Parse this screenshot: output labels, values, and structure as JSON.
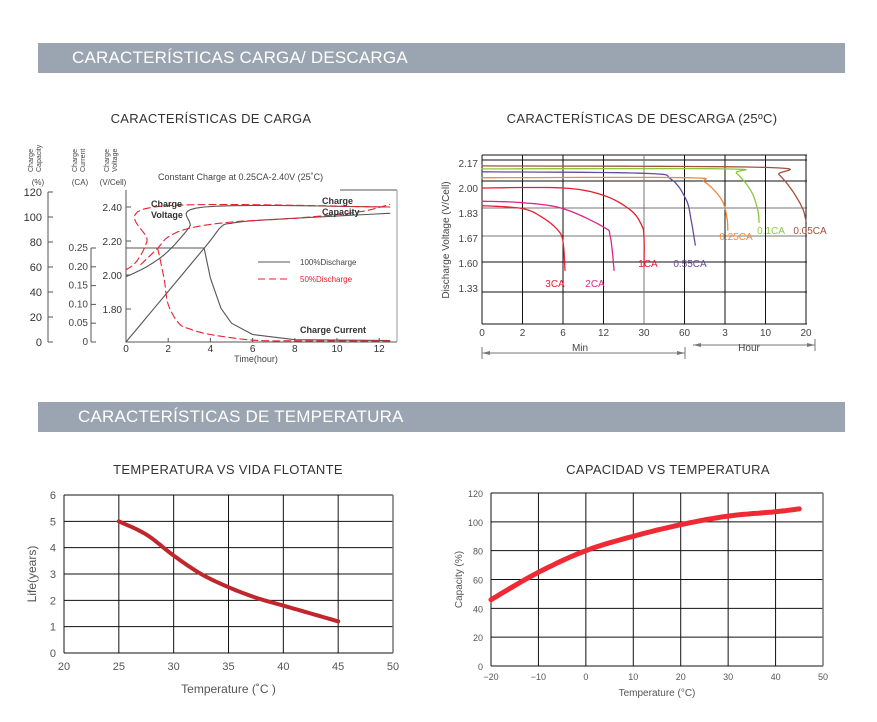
{
  "sections": {
    "charge_discharge": "CARACTERÍSTICAS CARGA/ DESCARGA",
    "temperature": "CARACTERÍSTICAS DE TEMPERATURA"
  },
  "chart_data": [
    {
      "type": "line",
      "title": "CARACTERÍSTICAS DE CARGA",
      "subtitle": "Constant Charge at 0.25CA-2.40V  (25˚C)",
      "axis_headers": {
        "capacity": [
          "Charge",
          "Capacity",
          "(%)"
        ],
        "current": [
          "Charge",
          "Current",
          "(CA)"
        ],
        "voltage": [
          "Charge",
          "Voltage",
          "(V/Cell)"
        ]
      },
      "xlabel": "Time(hour)",
      "x_ticks": [
        0,
        2,
        4,
        6,
        8,
        10,
        12
      ],
      "capacity_ticks": [
        0,
        20,
        40,
        60,
        80,
        100,
        120
      ],
      "current_ticks": [
        "0",
        "0.05",
        "0.10",
        "0.15",
        "0.20",
        "0.25"
      ],
      "voltage_ticks": [
        "1.80",
        "2.00",
        "2.20",
        "2.40"
      ],
      "annotations": {
        "voltage": [
          "Charge",
          "Voltage"
        ],
        "capacity": [
          "Charge",
          "Capacity"
        ],
        "current": "Charge Current"
      },
      "legend": [
        {
          "label": "100%Discharge",
          "color": "#555555",
          "dash": "solid"
        },
        {
          "label": "50%Discharge",
          "color": "#e8212e",
          "dash": "dashed"
        }
      ],
      "legend_placement": "right-center",
      "series": [
        {
          "group": "100%Discharge",
          "axis": "voltage",
          "points": [
            [
              0,
              1.99
            ],
            [
              1,
              2.05
            ],
            [
              2,
              2.14
            ],
            [
              3,
              2.28
            ],
            [
              3.7,
              2.4
            ],
            [
              12.5,
              2.4
            ]
          ]
        },
        {
          "group": "100%Discharge",
          "axis": "current",
          "points": [
            [
              0,
              0.25
            ],
            [
              3.7,
              0.25
            ],
            [
              4,
              0.17
            ],
            [
              4.5,
              0.09
            ],
            [
              5,
              0.05
            ],
            [
              6,
              0.02
            ],
            [
              8,
              0.006
            ],
            [
              12.5,
              0.004
            ]
          ]
        },
        {
          "group": "100%Discharge",
          "axis": "capacity",
          "points": [
            [
              0,
              0
            ],
            [
              3.7,
              75
            ],
            [
              4.5,
              92
            ],
            [
              5,
              95
            ],
            [
              6,
              97
            ],
            [
              8,
              99
            ],
            [
              12.5,
              103
            ]
          ]
        },
        {
          "group": "50%Discharge",
          "axis": "voltage",
          "points": [
            [
              0,
              2.03
            ],
            [
              0.5,
              2.08
            ],
            [
              1,
              2.2
            ],
            [
              1.3,
              2.4
            ],
            [
              12.5,
              2.4
            ]
          ]
        },
        {
          "group": "50%Discharge",
          "axis": "current",
          "points": [
            [
              1.5,
              0.25
            ],
            [
              1.8,
              0.17
            ],
            [
              2,
              0.1
            ],
            [
              2.5,
              0.05
            ],
            [
              3,
              0.035
            ],
            [
              4,
              0.02
            ],
            [
              6,
              0.005
            ],
            [
              8,
              0.003
            ],
            [
              12.5,
              0.003
            ]
          ]
        },
        {
          "group": "50%Discharge",
          "axis": "capacity",
          "points": [
            [
              0.7,
              62
            ],
            [
              1.5,
              75
            ],
            [
              2,
              84
            ],
            [
              3,
              91
            ],
            [
              5,
              96
            ],
            [
              8,
              99
            ],
            [
              11,
              104
            ],
            [
              12.5,
              110
            ]
          ]
        }
      ]
    },
    {
      "type": "line",
      "title": "CARACTERÍSTICAS DE DESCARGA (25ºC)",
      "ylabel": "Discharge Voltage (V/Cell)",
      "x_ticks_minutes": [
        0,
        2,
        6,
        12,
        30,
        60,
        180,
        600,
        1200
      ],
      "x_tick_labels": [
        "0",
        "2",
        "6",
        "12",
        "30",
        "60",
        "3",
        "10",
        "20"
      ],
      "x_units": {
        "min": "Min",
        "hour": "Hour"
      },
      "y_ticks": [
        2.17,
        2.0,
        1.83,
        1.67,
        1.6,
        1.33
      ],
      "y_tick_labels": [
        "2.17",
        "2.00",
        "1.83",
        "1.67",
        "1.60",
        "1.33"
      ],
      "grid": true,
      "series": [
        {
          "name": "3CA",
          "color": "#e8212e",
          "points": [
            [
              0,
              1.88
            ],
            [
              2,
              1.86
            ],
            [
              4,
              1.8
            ],
            [
              5.5,
              1.72
            ],
            [
              6,
              1.66
            ],
            [
              6.3,
              1.52
            ]
          ]
        },
        {
          "name": "2CA",
          "color": "#e0248a",
          "points": [
            [
              0,
              1.91
            ],
            [
              2,
              1.9
            ],
            [
              6,
              1.86
            ],
            [
              12,
              1.74
            ],
            [
              15,
              1.68
            ],
            [
              16.7,
              1.52
            ]
          ]
        },
        {
          "name": "1CA",
          "color": "#e81c2a",
          "points": [
            [
              0,
              2.0
            ],
            [
              6,
              2.0
            ],
            [
              12,
              1.95
            ],
            [
              24,
              1.85
            ],
            [
              29,
              1.75
            ],
            [
              30,
              1.67
            ],
            [
              30,
              1.56
            ]
          ]
        },
        {
          "name": "0.55CA",
          "color": "#6a4a9c",
          "points": [
            [
              0,
              2.11
            ],
            [
              30,
              2.1
            ],
            [
              50,
              2.06
            ],
            [
              65,
              1.92
            ],
            [
              80,
              1.78
            ],
            [
              92,
              1.65
            ]
          ]
        },
        {
          "name": "0.25CA",
          "color": "#f08a3c",
          "points": [
            [
              0,
              2.07
            ],
            [
              60,
              2.07
            ],
            [
              120,
              2.04
            ],
            [
              170,
              1.92
            ],
            [
              200,
              1.8
            ],
            [
              209,
              1.72
            ]
          ]
        },
        {
          "name": "0.1CA",
          "color": "#8cc63f",
          "points": [
            [
              0,
              2.13
            ],
            [
              180,
              2.13
            ],
            [
              300,
              2.1
            ],
            [
              450,
              1.98
            ],
            [
              520,
              1.85
            ],
            [
              533,
              1.77
            ]
          ]
        },
        {
          "name": "0.05CA",
          "color": "#a0523d",
          "points": [
            [
              0,
              2.15
            ],
            [
              600,
              2.14
            ],
            [
              800,
              2.09
            ],
            [
              1000,
              1.98
            ],
            [
              1150,
              1.86
            ],
            [
              1200,
              1.78
            ]
          ]
        }
      ]
    },
    {
      "type": "line",
      "title": "TEMPERATURA VS VIDA FLOTANTE",
      "xlabel": "Temperature (˚C )",
      "ylabel": "Life(years)",
      "xlim": [
        20,
        50
      ],
      "ylim": [
        0,
        6
      ],
      "x_ticks": [
        20,
        25,
        30,
        35,
        40,
        45,
        50
      ],
      "y_ticks": [
        0,
        1,
        2,
        3,
        4,
        5,
        6
      ],
      "grid": true,
      "color": "#c0272d",
      "x": [
        25,
        27.5,
        30,
        32.5,
        35,
        37.5,
        40,
        42.5,
        45
      ],
      "y": [
        5.0,
        4.5,
        3.7,
        3.0,
        2.5,
        2.1,
        1.8,
        1.5,
        1.2
      ]
    },
    {
      "type": "line",
      "title": "CAPACIDAD VS TEMPERATURA",
      "xlabel": "Temperature (°C)",
      "ylabel": "Capacity (%)",
      "xlim": [
        -20,
        50
      ],
      "ylim": [
        0,
        120
      ],
      "x_ticks": [
        "−20",
        "−10",
        "0",
        "10",
        "20",
        "30",
        "40",
        "50"
      ],
      "y_ticks": [
        0,
        20,
        40,
        60,
        80,
        100,
        120
      ],
      "grid": true,
      "color": "#ee2a35",
      "x": [
        -20,
        -10,
        0,
        10,
        20,
        30,
        40,
        45
      ],
      "y": [
        46,
        65,
        80,
        90,
        98,
        104,
        107,
        109
      ]
    }
  ]
}
